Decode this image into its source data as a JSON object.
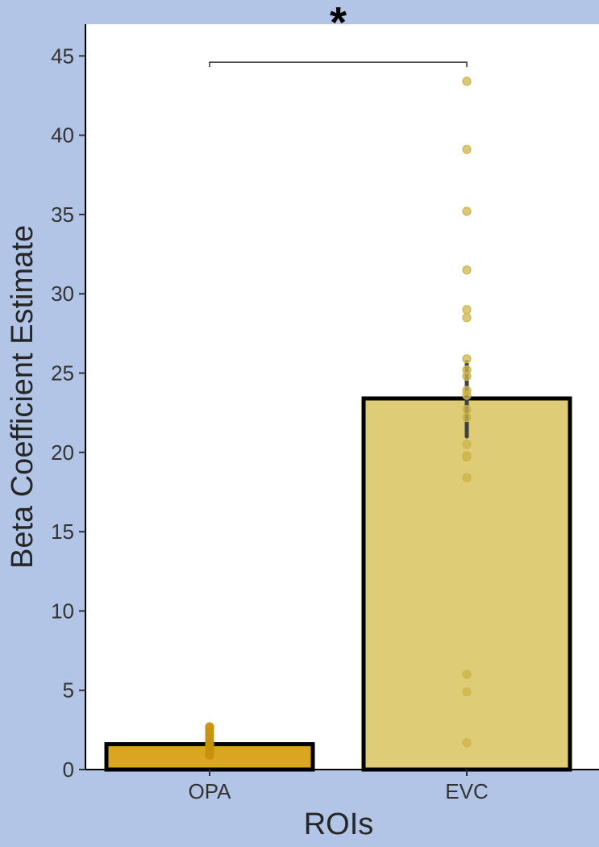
{
  "chart_data": {
    "type": "bar",
    "title": "",
    "xlabel": "ROIs",
    "ylabel": "Beta Coefficient Estimate",
    "ylim": [
      0,
      47
    ],
    "yticks": [
      0,
      5,
      10,
      15,
      20,
      25,
      30,
      35,
      40,
      45
    ],
    "categories": [
      "OPA",
      "EVC"
    ],
    "values": [
      1.6,
      23.4
    ],
    "errors": [
      [
        1.3,
        1.9
      ],
      [
        21.0,
        25.7
      ]
    ],
    "bar_colors": [
      "#daa520",
      "#dfcc77"
    ],
    "point_colors": [
      "#c8900e",
      "#cfb548"
    ],
    "points": [
      [
        0.9,
        1.0,
        1.2,
        1.3,
        1.5,
        1.6,
        1.8,
        2.0,
        2.2,
        2.4,
        2.6,
        2.7
      ],
      [
        1.7,
        4.9,
        6.0,
        18.4,
        19.7,
        19.8,
        20.5,
        22.2,
        22.7,
        23.6,
        23.9,
        24.8,
        25.2,
        25.9,
        28.5,
        29.0,
        31.5,
        35.2,
        39.1,
        43.4
      ]
    ],
    "significance": {
      "label": "*",
      "between": [
        "OPA",
        "EVC"
      ],
      "y": 44.6
    },
    "grid": false,
    "legend": "none"
  }
}
